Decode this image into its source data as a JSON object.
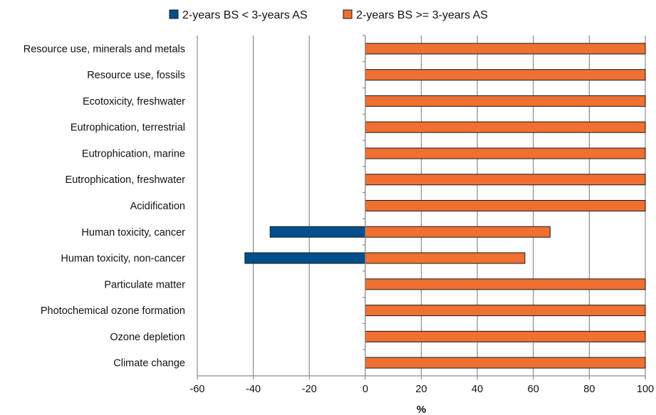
{
  "chart_data": {
    "type": "bar",
    "orientation": "horizontal",
    "title": "",
    "xlabel": "%",
    "ylabel": "",
    "xlim": [
      -60,
      100
    ],
    "xticks": [
      -60,
      -40,
      -20,
      0,
      20,
      40,
      60,
      80,
      100
    ],
    "grid": true,
    "legend_position": "top-center",
    "categories": [
      "Resource use, minerals and metals",
      "Resource use, fossils",
      "Ecotoxicity, freshwater",
      "Eutrophication, terrestrial",
      "Eutrophication, marine",
      "Eutrophication, freshwater",
      "Acidification",
      "Human toxicity, cancer",
      "Human toxicity, non-cancer",
      "Particulate matter",
      "Photochemical ozone formation",
      "Ozone depletion",
      "Climate change"
    ],
    "series": [
      {
        "name": "2-years BS < 3-years AS",
        "color": "#004f8c",
        "values": [
          0,
          0,
          0,
          0,
          0,
          0,
          0,
          -34,
          -43,
          0,
          0,
          0,
          0
        ]
      },
      {
        "name": "2-years BS >= 3-years AS",
        "color": "#ef7030",
        "values": [
          100,
          100,
          100,
          100,
          100,
          100,
          100,
          66,
          57,
          100,
          100,
          100,
          100
        ]
      }
    ]
  }
}
